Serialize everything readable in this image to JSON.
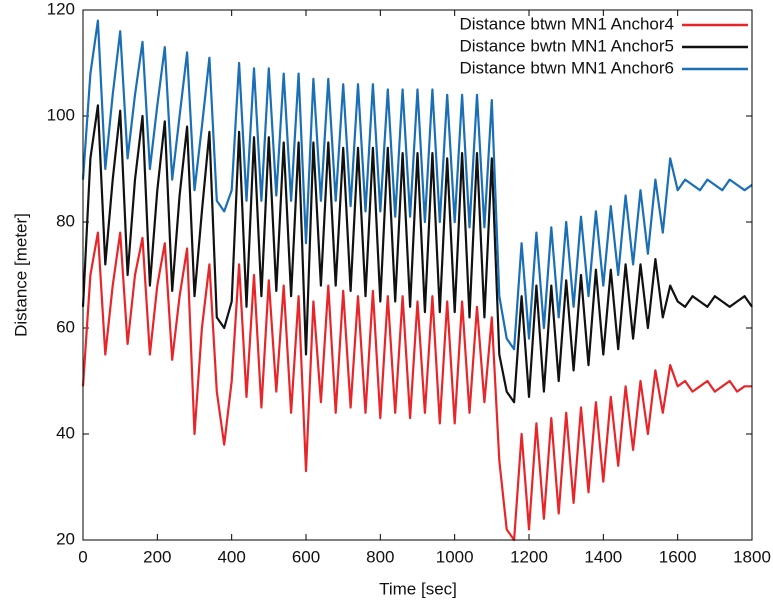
{
  "chart_data": {
    "type": "line",
    "x_label": "Time [sec]",
    "y_label": "Distance [meter]",
    "x": [
      0,
      20,
      40,
      60,
      80,
      100,
      120,
      140,
      160,
      180,
      200,
      220,
      240,
      260,
      280,
      300,
      320,
      340,
      360,
      380,
      400,
      420,
      440,
      460,
      480,
      500,
      520,
      540,
      560,
      580,
      600,
      620,
      640,
      660,
      680,
      700,
      720,
      740,
      760,
      780,
      800,
      820,
      840,
      860,
      880,
      900,
      920,
      940,
      960,
      980,
      1000,
      1020,
      1040,
      1060,
      1080,
      1100,
      1120,
      1140,
      1160,
      1180,
      1200,
      1220,
      1240,
      1260,
      1280,
      1300,
      1320,
      1340,
      1360,
      1380,
      1400,
      1420,
      1440,
      1460,
      1480,
      1500,
      1520,
      1540,
      1560,
      1580,
      1600,
      1620,
      1640,
      1660,
      1680,
      1700,
      1720,
      1740,
      1760,
      1780,
      1800
    ],
    "series": [
      {
        "name": "Distance btwn MN1 Anchor4",
        "color": "#e8262a",
        "values": [
          49,
          70,
          78,
          55,
          68,
          78,
          57,
          70,
          77,
          55,
          68,
          76,
          54,
          66,
          75,
          40,
          60,
          72,
          48,
          38,
          50,
          72,
          47,
          70,
          45,
          69,
          48,
          68,
          44,
          66,
          33,
          65,
          46,
          68,
          44,
          67,
          45,
          66,
          44,
          67,
          43,
          66,
          44,
          66,
          43,
          65,
          44,
          66,
          42,
          65,
          42,
          65,
          44,
          64,
          46,
          62,
          35,
          22,
          20,
          40,
          22,
          42,
          24,
          43,
          25,
          44,
          27,
          45,
          29,
          46,
          31,
          47,
          34,
          49,
          37,
          50,
          40,
          52,
          44,
          53,
          49,
          50,
          48,
          49,
          50,
          48,
          49,
          50,
          48,
          49,
          49
        ]
      },
      {
        "name": "Distance bwtn MN1 Anchor5",
        "color": "#111111",
        "values": [
          64,
          92,
          102,
          72,
          88,
          101,
          70,
          88,
          100,
          68,
          86,
          99,
          67,
          85,
          98,
          66,
          82,
          97,
          62,
          60,
          65,
          97,
          64,
          96,
          66,
          96,
          67,
          95,
          66,
          95,
          55,
          95,
          68,
          95,
          68,
          94,
          67,
          94,
          66,
          94,
          65,
          94,
          65,
          93,
          64,
          93,
          63,
          93,
          63,
          92,
          63,
          93,
          62,
          93,
          62,
          92,
          55,
          48,
          46,
          66,
          47,
          68,
          48,
          68,
          50,
          69,
          52,
          70,
          53,
          71,
          55,
          71,
          56,
          72,
          58,
          72,
          60,
          73,
          62,
          68,
          65,
          64,
          66,
          65,
          64,
          66,
          65,
          64,
          65,
          66,
          64
        ]
      },
      {
        "name": "Distance btwn MN1 Anchor6",
        "color": "#1a6fb5",
        "values": [
          88,
          108,
          118,
          90,
          104,
          116,
          92,
          104,
          114,
          90,
          102,
          113,
          88,
          100,
          112,
          86,
          98,
          111,
          84,
          82,
          86,
          110,
          84,
          109,
          84,
          109,
          85,
          108,
          84,
          108,
          76,
          107,
          84,
          107,
          84,
          106,
          83,
          106,
          82,
          106,
          82,
          105,
          81,
          105,
          81,
          105,
          80,
          105,
          80,
          104,
          80,
          104,
          79,
          104,
          79,
          103,
          66,
          58,
          56,
          76,
          58,
          78,
          60,
          79,
          62,
          80,
          64,
          81,
          66,
          82,
          68,
          83,
          70,
          85,
          72,
          86,
          74,
          88,
          78,
          92,
          86,
          88,
          87,
          86,
          88,
          87,
          86,
          88,
          87,
          86,
          87
        ]
      }
    ],
    "xlim": [
      0,
      1800
    ],
    "xticks": [
      0,
      200,
      400,
      600,
      800,
      1000,
      1200,
      1400,
      1600,
      1800
    ],
    "ylim": [
      20,
      120
    ],
    "yticks": [
      20,
      40,
      60,
      80,
      100,
      120
    ],
    "grid": false,
    "legend": "top-right"
  }
}
